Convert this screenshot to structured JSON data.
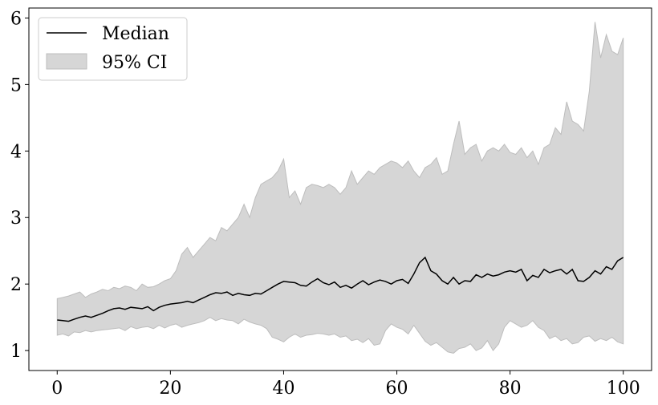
{
  "chart_data": {
    "type": "line",
    "title": "",
    "xlabel": "",
    "ylabel": "",
    "xlim": [
      -5,
      105
    ],
    "ylim": [
      0.7,
      6.15
    ],
    "xticks": [
      0,
      20,
      40,
      60,
      80,
      100
    ],
    "yticks": [
      1,
      2,
      3,
      4,
      5,
      6
    ],
    "grid": false,
    "legend": {
      "position": "top-left",
      "entries": [
        "Median",
        "95% CI"
      ]
    },
    "colors": {
      "median": "#000000",
      "ci_fill": "#d6d6d6",
      "ci_edge": "#bdbdbd"
    },
    "series": [
      {
        "name": "Median",
        "x": [
          0,
          1,
          2,
          3,
          4,
          5,
          6,
          7,
          8,
          9,
          10,
          11,
          12,
          13,
          14,
          15,
          16,
          17,
          18,
          19,
          20,
          21,
          22,
          23,
          24,
          25,
          26,
          27,
          28,
          29,
          30,
          31,
          32,
          33,
          34,
          35,
          36,
          37,
          38,
          39,
          40,
          41,
          42,
          43,
          44,
          45,
          46,
          47,
          48,
          49,
          50,
          51,
          52,
          53,
          54,
          55,
          56,
          57,
          58,
          59,
          60,
          61,
          62,
          63,
          64,
          65,
          66,
          67,
          68,
          69,
          70,
          71,
          72,
          73,
          74,
          75,
          76,
          77,
          78,
          79,
          80,
          81,
          82,
          83,
          84,
          85,
          86,
          87,
          88,
          89,
          90,
          91,
          92,
          93,
          94,
          95,
          96,
          97,
          98,
          99,
          100
        ],
        "values": [
          1.46,
          1.45,
          1.44,
          1.47,
          1.5,
          1.52,
          1.5,
          1.53,
          1.56,
          1.6,
          1.63,
          1.64,
          1.62,
          1.65,
          1.64,
          1.63,
          1.66,
          1.6,
          1.65,
          1.68,
          1.7,
          1.71,
          1.72,
          1.74,
          1.72,
          1.76,
          1.8,
          1.84,
          1.87,
          1.86,
          1.88,
          1.83,
          1.86,
          1.84,
          1.83,
          1.86,
          1.85,
          1.9,
          1.95,
          2.0,
          2.04,
          2.03,
          2.02,
          1.98,
          1.97,
          2.03,
          2.08,
          2.02,
          1.99,
          2.03,
          1.95,
          1.98,
          1.94,
          2.0,
          2.05,
          1.99,
          2.03,
          2.06,
          2.04,
          2.0,
          2.05,
          2.07,
          2.01,
          2.15,
          2.32,
          2.4,
          2.2,
          2.15,
          2.05,
          2.0,
          2.1,
          2.0,
          2.05,
          2.04,
          2.14,
          2.1,
          2.15,
          2.12,
          2.14,
          2.18,
          2.2,
          2.18,
          2.22,
          2.05,
          2.13,
          2.1,
          2.22,
          2.17,
          2.2,
          2.22,
          2.15,
          2.22,
          2.05,
          2.04,
          2.1,
          2.2,
          2.15,
          2.26,
          2.22,
          2.35,
          2.4
        ]
      },
      {
        "name": "95% CI",
        "x": [
          0,
          1,
          2,
          3,
          4,
          5,
          6,
          7,
          8,
          9,
          10,
          11,
          12,
          13,
          14,
          15,
          16,
          17,
          18,
          19,
          20,
          21,
          22,
          23,
          24,
          25,
          26,
          27,
          28,
          29,
          30,
          31,
          32,
          33,
          34,
          35,
          36,
          37,
          38,
          39,
          40,
          41,
          42,
          43,
          44,
          45,
          46,
          47,
          48,
          49,
          50,
          51,
          52,
          53,
          54,
          55,
          56,
          57,
          58,
          59,
          60,
          61,
          62,
          63,
          64,
          65,
          66,
          67,
          68,
          69,
          70,
          71,
          72,
          73,
          74,
          75,
          76,
          77,
          78,
          79,
          80,
          81,
          82,
          83,
          84,
          85,
          86,
          87,
          88,
          89,
          90,
          91,
          92,
          93,
          94,
          95,
          96,
          97,
          98,
          99,
          100
        ],
        "lower": [
          1.23,
          1.25,
          1.22,
          1.28,
          1.27,
          1.3,
          1.28,
          1.3,
          1.31,
          1.32,
          1.33,
          1.34,
          1.3,
          1.36,
          1.33,
          1.35,
          1.36,
          1.33,
          1.38,
          1.34,
          1.38,
          1.4,
          1.35,
          1.38,
          1.4,
          1.42,
          1.45,
          1.5,
          1.45,
          1.48,
          1.46,
          1.45,
          1.4,
          1.47,
          1.43,
          1.4,
          1.38,
          1.33,
          1.2,
          1.17,
          1.13,
          1.2,
          1.25,
          1.2,
          1.23,
          1.24,
          1.26,
          1.25,
          1.23,
          1.25,
          1.2,
          1.22,
          1.15,
          1.17,
          1.12,
          1.18,
          1.08,
          1.1,
          1.3,
          1.4,
          1.35,
          1.32,
          1.25,
          1.38,
          1.26,
          1.14,
          1.08,
          1.12,
          1.05,
          0.98,
          0.96,
          1.03,
          1.05,
          1.1,
          1.0,
          1.04,
          1.15,
          1.0,
          1.1,
          1.35,
          1.45,
          1.4,
          1.35,
          1.38,
          1.45,
          1.35,
          1.3,
          1.18,
          1.22,
          1.15,
          1.18,
          1.1,
          1.12,
          1.2,
          1.22,
          1.14,
          1.18,
          1.15,
          1.2,
          1.13,
          1.1
        ],
        "upper": [
          1.78,
          1.8,
          1.82,
          1.85,
          1.88,
          1.8,
          1.85,
          1.88,
          1.92,
          1.9,
          1.95,
          1.93,
          1.97,
          1.95,
          1.9,
          2.0,
          1.95,
          1.96,
          2.0,
          2.05,
          2.08,
          2.2,
          2.45,
          2.55,
          2.4,
          2.5,
          2.6,
          2.7,
          2.65,
          2.85,
          2.8,
          2.9,
          3.0,
          3.2,
          3.0,
          3.3,
          3.5,
          3.55,
          3.6,
          3.7,
          3.88,
          3.3,
          3.4,
          3.2,
          3.45,
          3.5,
          3.48,
          3.45,
          3.5,
          3.45,
          3.35,
          3.45,
          3.7,
          3.5,
          3.6,
          3.7,
          3.65,
          3.75,
          3.8,
          3.85,
          3.82,
          3.75,
          3.85,
          3.7,
          3.6,
          3.75,
          3.8,
          3.9,
          3.65,
          3.7,
          4.1,
          4.45,
          3.95,
          4.05,
          4.1,
          3.85,
          4.0,
          4.05,
          4.0,
          4.1,
          3.98,
          3.95,
          4.05,
          3.9,
          4.0,
          3.8,
          4.05,
          4.1,
          4.35,
          4.25,
          4.74,
          4.45,
          4.4,
          4.3,
          4.9,
          5.94,
          5.4,
          5.75,
          5.5,
          5.45,
          5.7
        ]
      }
    ]
  }
}
